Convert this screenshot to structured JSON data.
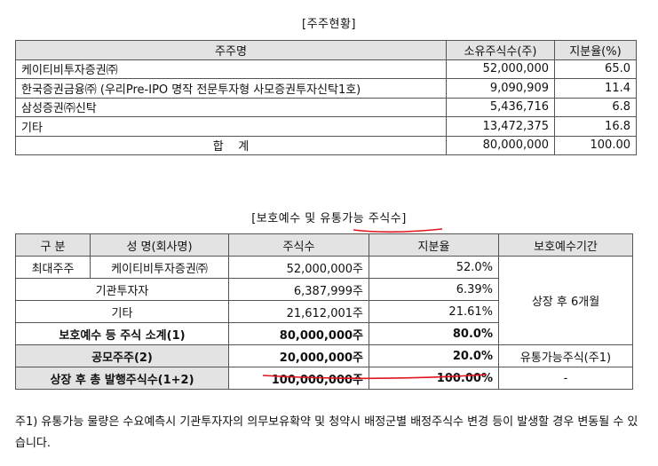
{
  "shareholders": {
    "caption": "[주주현황]",
    "headers": [
      "주주명",
      "소유주식수(주)",
      "지분율(%)"
    ],
    "rows": [
      [
        "케이티비투자증권㈜",
        "52,000,000",
        "65.0"
      ],
      [
        "한국증권금융㈜ (우리Pre-IPO 명작 전문투자형 사모증권투자신탁1호)",
        "9,090,909",
        "11.4"
      ],
      [
        "삼성증권㈜신탁",
        "5,436,716",
        "6.8"
      ],
      [
        "기타",
        "13,472,375",
        "16.8"
      ]
    ],
    "total": [
      "합    계",
      "80,000,000",
      "100.00"
    ]
  },
  "lockup": {
    "caption": "[보호예수 및 유통가능 주식수]",
    "headers": [
      "구 분",
      "성 명(회사명)",
      "주식수",
      "지분율",
      "보호예수기간"
    ],
    "rows": [
      {
        "category": "최대주주",
        "name": "케이티비투자증권㈜",
        "shares": "52,000,000주",
        "ratio": "52.0%"
      },
      {
        "category": "기관투자자",
        "shares": "6,387,999주",
        "ratio": "6.39%"
      },
      {
        "category": "기타",
        "shares": "21,612,001주",
        "ratio": "21.61%"
      }
    ],
    "period": "상장 후 6개월",
    "subtotal": {
      "label": "보호예수 등 주식 소계(1)",
      "shares": "80,000,000주",
      "ratio": "80.0%"
    },
    "public": {
      "label": "공모주주(2)",
      "shares": "20,000,000주",
      "ratio": "20.0%",
      "note": "유통가능주식(주1)"
    },
    "grand_total": {
      "label": "상장 후 총 발행주식수(1+2)",
      "shares": "100,000,000주",
      "ratio": "100.00%",
      "note": "-"
    }
  },
  "footnote": "주1) 유통가능 물량은 수요예측시 기관투자자의 의무보유확약 및 청약시 배정군별 배정주식수 변경 등이 발생할 경우 변동될 수 있습니다.",
  "colors": {
    "annotation": "#e0141e",
    "header_bg": "#e3e3e3"
  }
}
